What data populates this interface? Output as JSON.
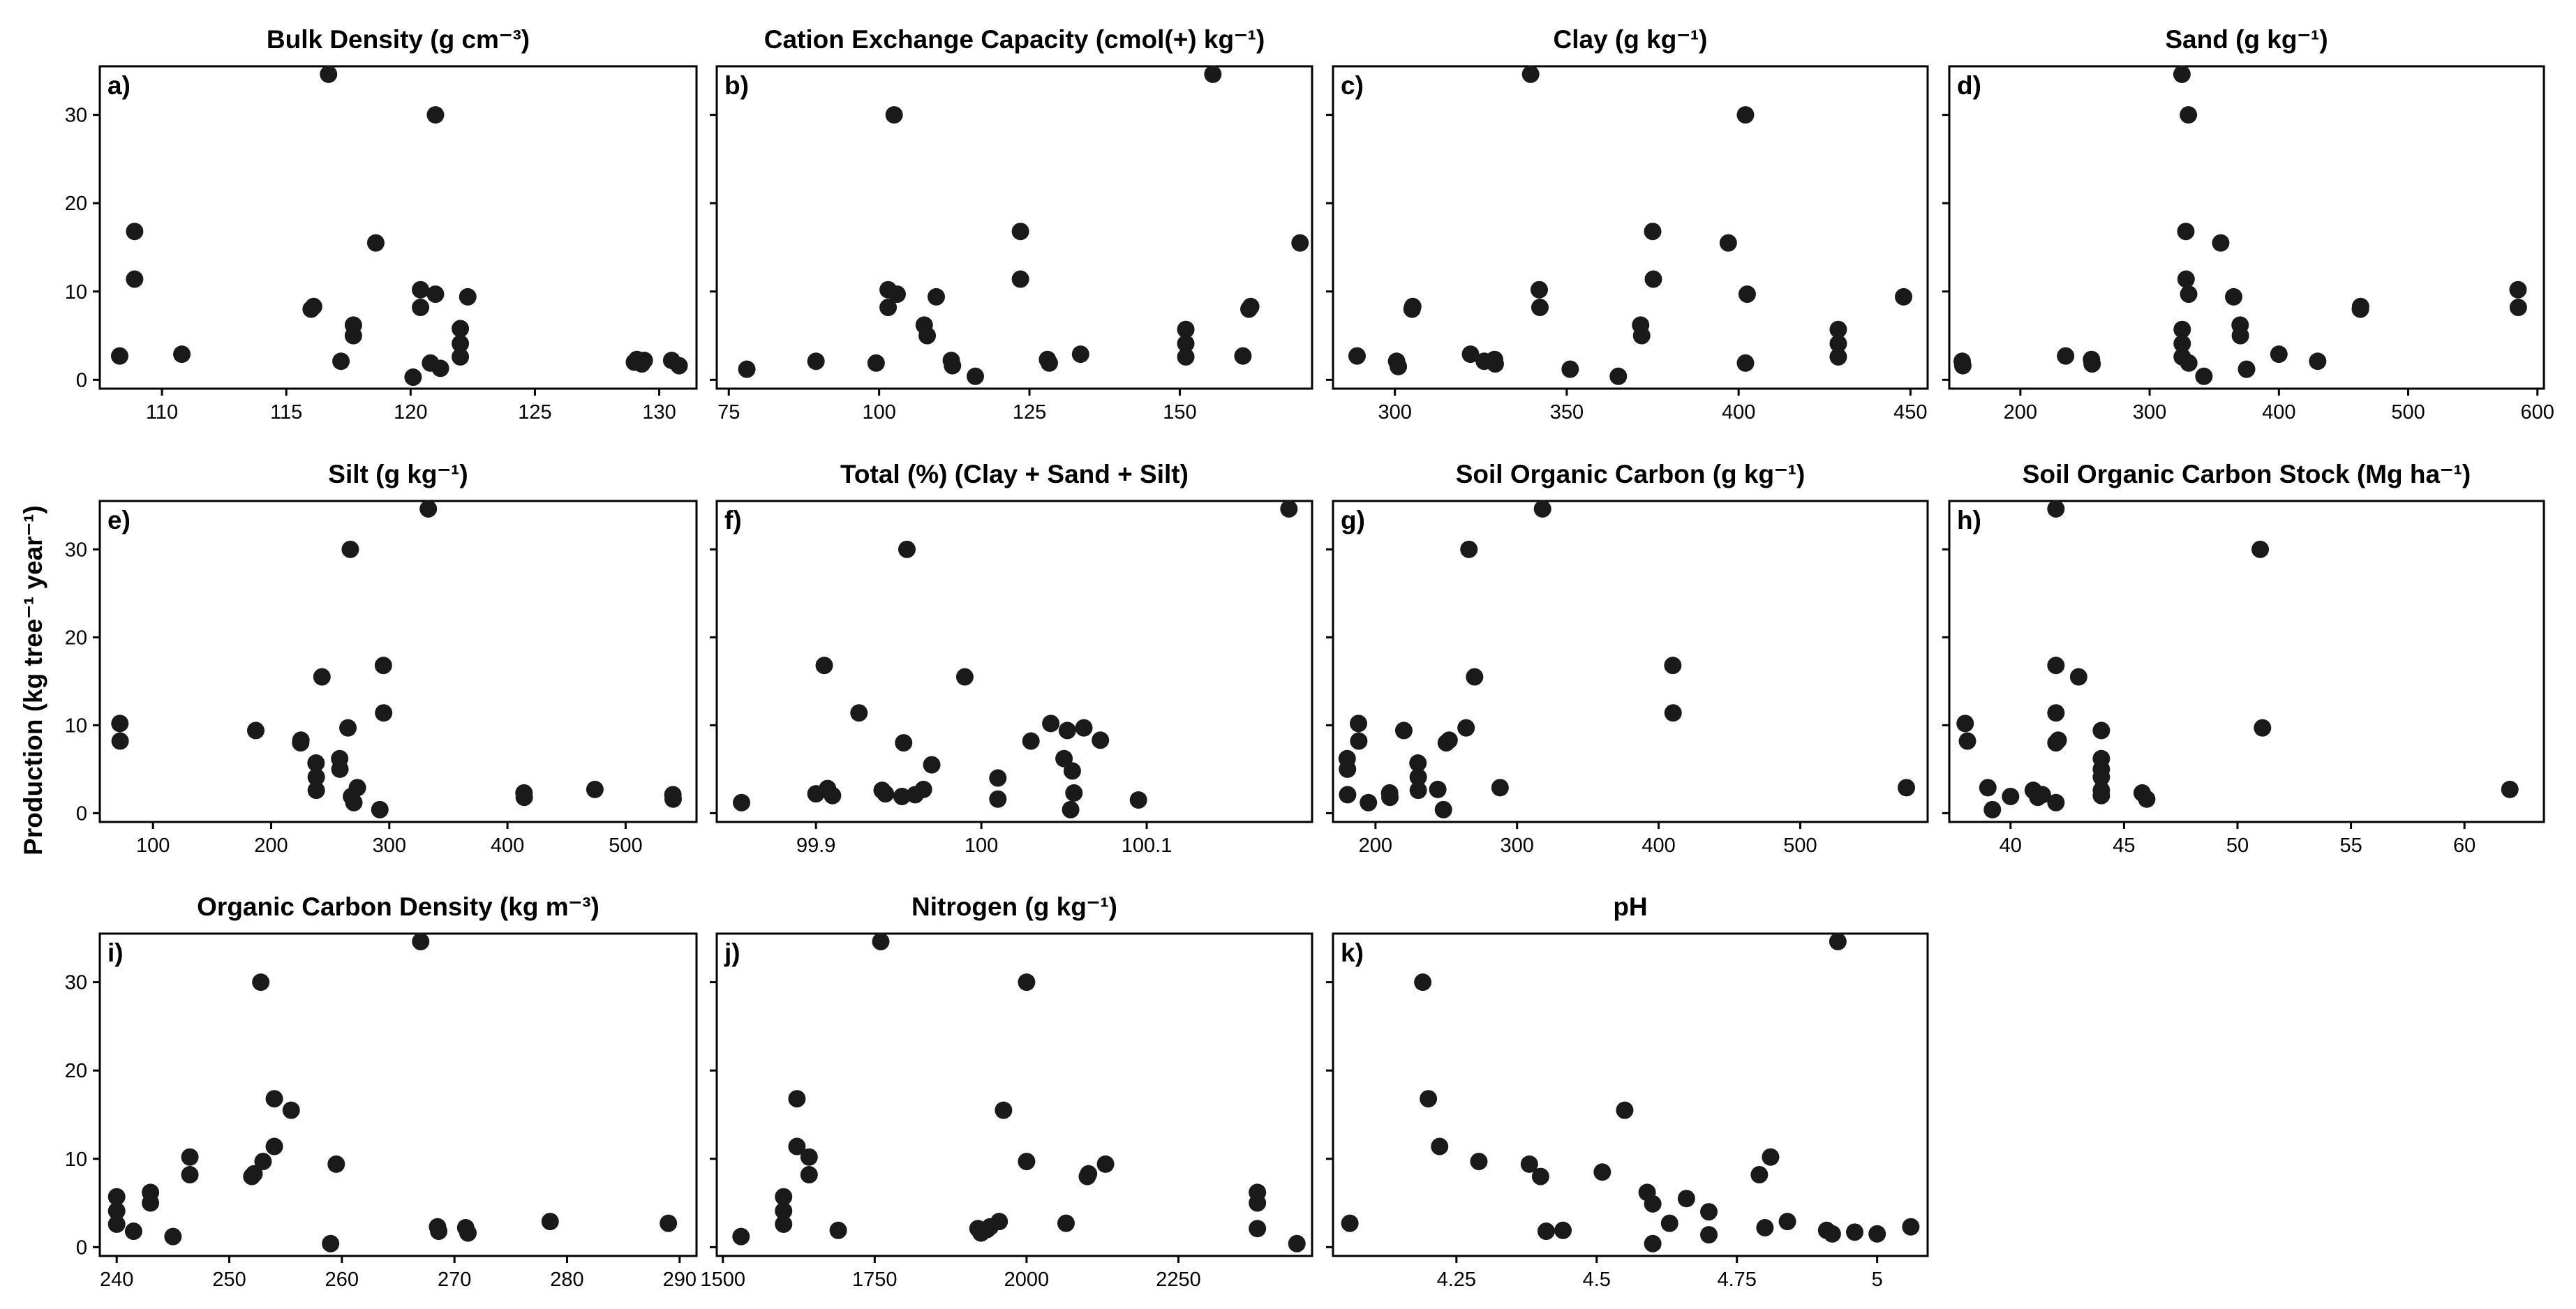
{
  "figure": {
    "ylabel": "Production (kg tree⁻¹ year⁻¹)"
  },
  "chart_data": [
    {
      "type": "scatter",
      "letter": "a)",
      "title": "Bulk Density (g cm⁻³)",
      "xlim": [
        107.5,
        131.5
      ],
      "ylim": [
        -1,
        35.5
      ],
      "xticks": [
        110,
        115,
        120,
        125,
        130
      ],
      "yticks": [
        0,
        10,
        20,
        30
      ],
      "points": [
        [
          108.3,
          2.7
        ],
        [
          108.9,
          16.8
        ],
        [
          108.9,
          11.4
        ],
        [
          110.8,
          2.9
        ],
        [
          116,
          8.0
        ],
        [
          116.1,
          8.3
        ],
        [
          116.7,
          34.6
        ],
        [
          117.2,
          2.1
        ],
        [
          117.7,
          6.2
        ],
        [
          117.7,
          5.0
        ],
        [
          118.6,
          15.5
        ],
        [
          120.1,
          0.3
        ],
        [
          120.4,
          10.2
        ],
        [
          120.4,
          8.2
        ],
        [
          120.8,
          1.9
        ],
        [
          121,
          30.0
        ],
        [
          121,
          9.7
        ],
        [
          121.2,
          1.3
        ],
        [
          122,
          5.8
        ],
        [
          122,
          4.1
        ],
        [
          122,
          2.6
        ],
        [
          122.3,
          9.4
        ],
        [
          129,
          2.0
        ],
        [
          129.1,
          2.3
        ],
        [
          129.3,
          1.8
        ],
        [
          129.4,
          2.2
        ],
        [
          130.5,
          2.2
        ],
        [
          130.8,
          1.6
        ]
      ]
    },
    {
      "type": "scatter",
      "letter": "b)",
      "title": "Cation Exchange Capacity (cmol(+) kg⁻¹)",
      "xlim": [
        73,
        172
      ],
      "ylim": [
        -1,
        35.5
      ],
      "xticks": [
        75,
        100,
        125,
        150
      ],
      "yticks": [
        0,
        10,
        20,
        30
      ],
      "points": [
        [
          78,
          1.2
        ],
        [
          89.5,
          2.1
        ],
        [
          99.5,
          1.9
        ],
        [
          101.5,
          10.2
        ],
        [
          101.5,
          8.2
        ],
        [
          102.5,
          30.0
        ],
        [
          103,
          9.7
        ],
        [
          107.5,
          6.2
        ],
        [
          108,
          5.0
        ],
        [
          109.5,
          9.4
        ],
        [
          112,
          2.2
        ],
        [
          112.2,
          1.6
        ],
        [
          116,
          0.4
        ],
        [
          123.5,
          16.8
        ],
        [
          123.5,
          11.4
        ],
        [
          128,
          2.3
        ],
        [
          128.3,
          1.9
        ],
        [
          133.5,
          2.9
        ],
        [
          151,
          5.7
        ],
        [
          151,
          4.1
        ],
        [
          151,
          2.6
        ],
        [
          155.5,
          34.6
        ],
        [
          160.5,
          2.7
        ],
        [
          161.5,
          8.0
        ],
        [
          161.8,
          8.3
        ],
        [
          170,
          15.5
        ]
      ]
    },
    {
      "type": "scatter",
      "letter": "c)",
      "title": "Clay (g kg⁻¹)",
      "xlim": [
        282,
        455
      ],
      "ylim": [
        -1,
        35.5
      ],
      "xticks": [
        300,
        350,
        400,
        450
      ],
      "yticks": [
        0,
        10,
        20,
        30
      ],
      "points": [
        [
          289,
          2.7
        ],
        [
          300.5,
          2.1
        ],
        [
          301,
          1.5
        ],
        [
          305,
          8.0
        ],
        [
          305.2,
          8.3
        ],
        [
          322,
          2.9
        ],
        [
          326,
          2.1
        ],
        [
          329,
          2.3
        ],
        [
          329.2,
          1.8
        ],
        [
          339.5,
          34.6
        ],
        [
          342,
          10.2
        ],
        [
          342.2,
          8.2
        ],
        [
          351,
          1.2
        ],
        [
          365,
          0.4
        ],
        [
          371.5,
          6.2
        ],
        [
          371.8,
          5.0
        ],
        [
          375,
          16.8
        ],
        [
          375.2,
          11.4
        ],
        [
          397,
          15.5
        ],
        [
          402,
          30.0
        ],
        [
          402.5,
          9.7
        ],
        [
          402,
          1.9
        ],
        [
          429,
          5.7
        ],
        [
          429,
          4.1
        ],
        [
          429,
          2.6
        ],
        [
          448,
          9.4
        ]
      ]
    },
    {
      "type": "scatter",
      "letter": "d)",
      "title": "Sand (g kg⁻¹)",
      "xlim": [
        145,
        605
      ],
      "ylim": [
        -1,
        35.5
      ],
      "xticks": [
        200,
        300,
        400,
        500,
        600
      ],
      "yticks": [
        0,
        10,
        20,
        30
      ],
      "points": [
        [
          155,
          2.1
        ],
        [
          155.5,
          1.6
        ],
        [
          235,
          2.7
        ],
        [
          255,
          2.3
        ],
        [
          255.5,
          1.8
        ],
        [
          325,
          34.6
        ],
        [
          325.2,
          5.7
        ],
        [
          325.2,
          4.1
        ],
        [
          325.2,
          2.6
        ],
        [
          328,
          16.8
        ],
        [
          328.2,
          11.4
        ],
        [
          330,
          30.0
        ],
        [
          330.2,
          9.7
        ],
        [
          330.3,
          1.9
        ],
        [
          342,
          0.4
        ],
        [
          355,
          15.5
        ],
        [
          365,
          9.4
        ],
        [
          370,
          6.2
        ],
        [
          370.2,
          5.0
        ],
        [
          375,
          1.2
        ],
        [
          400,
          2.9
        ],
        [
          430,
          2.1
        ],
        [
          463,
          8.0
        ],
        [
          463.2,
          8.3
        ],
        [
          585,
          10.2
        ],
        [
          585.2,
          8.2
        ]
      ]
    },
    {
      "type": "scatter",
      "letter": "e)",
      "title": "Silt (g kg⁻¹)",
      "xlim": [
        55,
        560
      ],
      "ylim": [
        -1,
        35.5
      ],
      "xticks": [
        100,
        200,
        300,
        400,
        500
      ],
      "yticks": [
        0,
        10,
        20,
        30
      ],
      "points": [
        [
          72,
          10.2
        ],
        [
          72.2,
          8.2
        ],
        [
          187,
          9.4
        ],
        [
          225,
          8.0
        ],
        [
          225.2,
          8.3
        ],
        [
          238,
          5.7
        ],
        [
          238.2,
          4.1
        ],
        [
          238.2,
          2.6
        ],
        [
          243,
          15.5
        ],
        [
          258,
          6.2
        ],
        [
          258.2,
          5.0
        ],
        [
          265,
          9.7
        ],
        [
          267,
          30.0
        ],
        [
          268,
          1.9
        ],
        [
          270,
          1.2
        ],
        [
          273,
          2.9
        ],
        [
          292,
          0.4
        ],
        [
          295,
          16.8
        ],
        [
          295.2,
          11.4
        ],
        [
          333,
          34.6
        ],
        [
          414,
          2.3
        ],
        [
          414.2,
          1.8
        ],
        [
          474,
          2.7
        ],
        [
          540,
          2.1
        ],
        [
          540.2,
          1.6
        ]
      ]
    },
    {
      "type": "scatter",
      "letter": "f)",
      "title": "Total (%) (Clay + Sand + Silt)",
      "xlim": [
        99.84,
        100.2
      ],
      "ylim": [
        -1,
        35.5
      ],
      "xticks": [
        99.9,
        100.0,
        100.1
      ],
      "yticks": [
        0,
        10,
        20,
        30
      ],
      "points": [
        [
          99.855,
          1.2
        ],
        [
          99.9,
          2.2
        ],
        [
          99.905,
          16.8
        ],
        [
          99.907,
          2.8
        ],
        [
          99.91,
          2.0
        ],
        [
          99.926,
          11.4
        ],
        [
          99.94,
          2.6
        ],
        [
          99.942,
          2.2
        ],
        [
          99.952,
          1.9
        ],
        [
          99.953,
          8.0
        ],
        [
          99.955,
          30.0
        ],
        [
          99.96,
          2.1
        ],
        [
          99.965,
          2.7
        ],
        [
          99.97,
          5.5
        ],
        [
          99.99,
          15.5
        ],
        [
          100.01,
          4.0
        ],
        [
          100.01,
          1.6
        ],
        [
          100.03,
          8.2
        ],
        [
          100.042,
          10.2
        ],
        [
          100.05,
          6.2
        ],
        [
          100.052,
          9.4
        ],
        [
          100.055,
          4.8
        ],
        [
          100.056,
          2.3
        ],
        [
          100.054,
          0.4
        ],
        [
          100.062,
          9.7
        ],
        [
          100.072,
          8.3
        ],
        [
          100.095,
          1.5
        ],
        [
          100.186,
          34.6
        ]
      ]
    },
    {
      "type": "scatter",
      "letter": "g)",
      "title": "Soil Organic Carbon (g kg⁻¹)",
      "xlim": [
        170,
        590
      ],
      "ylim": [
        -1,
        35.5
      ],
      "xticks": [
        200,
        300,
        400,
        500
      ],
      "yticks": [
        0,
        10,
        20,
        30
      ],
      "points": [
        [
          180,
          6.2
        ],
        [
          180.2,
          5.0
        ],
        [
          180.3,
          2.1
        ],
        [
          188,
          10.2
        ],
        [
          188.2,
          8.2
        ],
        [
          195,
          1.2
        ],
        [
          210,
          2.3
        ],
        [
          210.2,
          1.8
        ],
        [
          220,
          9.4
        ],
        [
          230,
          5.7
        ],
        [
          230.2,
          4.1
        ],
        [
          230.2,
          2.6
        ],
        [
          244,
          2.7
        ],
        [
          248,
          0.4
        ],
        [
          250,
          8.0
        ],
        [
          252,
          8.3
        ],
        [
          264,
          9.7
        ],
        [
          266,
          30.0
        ],
        [
          270,
          15.5
        ],
        [
          288,
          2.9
        ],
        [
          318,
          34.6
        ],
        [
          410,
          16.8
        ],
        [
          410.2,
          11.4
        ],
        [
          575,
          2.9
        ]
      ]
    },
    {
      "type": "scatter",
      "letter": "h)",
      "title": "Soil Organic Carbon Stock (Mg ha⁻¹)",
      "xlim": [
        37.3,
        63.5
      ],
      "ylim": [
        -1,
        35.5
      ],
      "xticks": [
        40,
        45,
        50,
        55,
        60
      ],
      "yticks": [
        0,
        10,
        20,
        30
      ],
      "points": [
        [
          38,
          10.2
        ],
        [
          38.1,
          8.2
        ],
        [
          39,
          2.9
        ],
        [
          39.2,
          0.4
        ],
        [
          40,
          1.9
        ],
        [
          41,
          2.6
        ],
        [
          41.2,
          1.8
        ],
        [
          41.4,
          2.1
        ],
        [
          42,
          34.6
        ],
        [
          42,
          16.8
        ],
        [
          42,
          11.4
        ],
        [
          42,
          8.0
        ],
        [
          42.1,
          8.3
        ],
        [
          42,
          1.2
        ],
        [
          43,
          15.5
        ],
        [
          44,
          9.4
        ],
        [
          44,
          6.2
        ],
        [
          44,
          5.0
        ],
        [
          44,
          4.1
        ],
        [
          44,
          2.6
        ],
        [
          44,
          2.0
        ],
        [
          45.8,
          2.3
        ],
        [
          46,
          1.6
        ],
        [
          51,
          30.0
        ],
        [
          51.1,
          9.7
        ],
        [
          62,
          2.7
        ]
      ]
    },
    {
      "type": "scatter",
      "letter": "i)",
      "title": "Organic Carbon Density (kg m⁻³)",
      "xlim": [
        238.5,
        291.5
      ],
      "ylim": [
        -1,
        35.5
      ],
      "xticks": [
        240,
        250,
        260,
        270,
        280,
        290
      ],
      "yticks": [
        0,
        10,
        20,
        30
      ],
      "points": [
        [
          240,
          5.7
        ],
        [
          240,
          4.1
        ],
        [
          240,
          2.6
        ],
        [
          241.5,
          1.8
        ],
        [
          243,
          6.2
        ],
        [
          243,
          5.0
        ],
        [
          245,
          1.2
        ],
        [
          246.5,
          10.2
        ],
        [
          246.5,
          8.2
        ],
        [
          252,
          8.0
        ],
        [
          252.2,
          8.3
        ],
        [
          252.8,
          30.0
        ],
        [
          253,
          9.7
        ],
        [
          254,
          16.8
        ],
        [
          254,
          11.4
        ],
        [
          255.5,
          15.5
        ],
        [
          259,
          0.4
        ],
        [
          259.5,
          9.4
        ],
        [
          267,
          34.6
        ],
        [
          268.5,
          2.3
        ],
        [
          268.6,
          1.8
        ],
        [
          271,
          2.2
        ],
        [
          271.2,
          1.6
        ],
        [
          278.5,
          2.9
        ],
        [
          289,
          2.7
        ]
      ]
    },
    {
      "type": "scatter",
      "letter": "j)",
      "title": "Nitrogen (g kg⁻¹)",
      "xlim": [
        1490,
        2470
      ],
      "ylim": [
        -1,
        35.5
      ],
      "xticks": [
        1500,
        1750,
        2000,
        2250
      ],
      "yticks": [
        0,
        10,
        20,
        30
      ],
      "points": [
        [
          1530,
          1.2
        ],
        [
          1600,
          5.7
        ],
        [
          1600,
          4.1
        ],
        [
          1600,
          2.6
        ],
        [
          1622,
          16.8
        ],
        [
          1622,
          11.4
        ],
        [
          1642,
          10.2
        ],
        [
          1642,
          8.2
        ],
        [
          1690,
          1.9
        ],
        [
          1760,
          34.6
        ],
        [
          1920,
          2.1
        ],
        [
          1925,
          1.6
        ],
        [
          1935,
          2.0
        ],
        [
          1940,
          2.3
        ],
        [
          1955,
          2.9
        ],
        [
          1962,
          15.5
        ],
        [
          2000,
          30.0
        ],
        [
          2000,
          9.7
        ],
        [
          2065,
          2.7
        ],
        [
          2100,
          8.0
        ],
        [
          2102,
          8.3
        ],
        [
          2130,
          9.4
        ],
        [
          2380,
          6.2
        ],
        [
          2380,
          5.0
        ],
        [
          2380,
          2.1
        ],
        [
          2445,
          0.4
        ]
      ]
    },
    {
      "type": "scatter",
      "letter": "k)",
      "title": "pH",
      "xlim": [
        4.03,
        5.09
      ],
      "ylim": [
        -1,
        35.5
      ],
      "xticks": [
        4.25,
        4.5,
        4.75,
        5.0
      ],
      "yticks": [
        0,
        10,
        20,
        30
      ],
      "points": [
        [
          4.06,
          2.7
        ],
        [
          4.19,
          30.0
        ],
        [
          4.2,
          16.8
        ],
        [
          4.22,
          11.4
        ],
        [
          4.29,
          9.7
        ],
        [
          4.38,
          9.4
        ],
        [
          4.4,
          8.0
        ],
        [
          4.41,
          1.8
        ],
        [
          4.44,
          1.9
        ],
        [
          4.51,
          8.5
        ],
        [
          4.55,
          15.5
        ],
        [
          4.59,
          6.2
        ],
        [
          4.6,
          4.9
        ],
        [
          4.6,
          0.4
        ],
        [
          4.63,
          2.7
        ],
        [
          4.66,
          5.5
        ],
        [
          4.7,
          4.0
        ],
        [
          4.7,
          1.4
        ],
        [
          4.79,
          8.2
        ],
        [
          4.81,
          10.2
        ],
        [
          4.8,
          2.2
        ],
        [
          4.84,
          2.9
        ],
        [
          4.91,
          1.9
        ],
        [
          4.92,
          1.5
        ],
        [
          4.93,
          34.6
        ],
        [
          4.96,
          1.7
        ],
        [
          5.0,
          1.5
        ],
        [
          5.06,
          2.3
        ]
      ]
    }
  ]
}
